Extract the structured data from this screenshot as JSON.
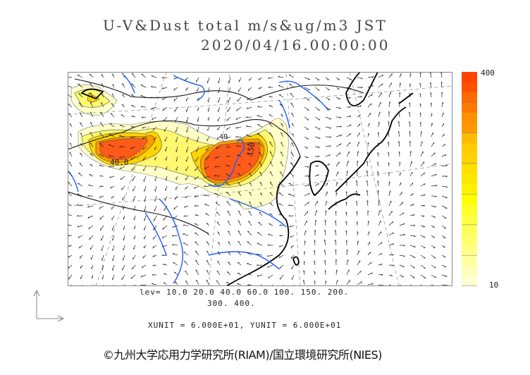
{
  "title": {
    "line1": "U-V&Dust total m/s&ug/m3 JST",
    "line2": "2020/04/16.00:00:00"
  },
  "colorbar": {
    "max_label": "400",
    "min_label": "10",
    "colors": [
      "#ff4400",
      "#ff5000",
      "#ff6a00",
      "#ff7800",
      "#ff9000",
      "#ff9900",
      "#ffbb00",
      "#ffcc00",
      "#ffd200",
      "#ffe000",
      "#ffe600",
      "#fff200",
      "#ffff00",
      "#ffff2a",
      "#ffff44",
      "#ffff5a",
      "#ffff70",
      "#ffff88",
      "#ffffa0",
      "#ffffbb",
      "#ffffd0"
    ]
  },
  "map": {
    "contour_labels": [
      "40.0",
      "150",
      "40"
    ],
    "colors": {
      "coast": "#000000",
      "river": "#1a5cff",
      "grid": "#888888",
      "border": "#222222"
    }
  },
  "legend": {
    "levels_line1": "lev= 10.0 20.0 40.0 60.0 100. 150. 200.",
    "levels_line2": "300. 400.",
    "units": "XUNIT = 6.000E+01, YUNIT = 6.000E+01"
  },
  "copyright": "©九州大学応用力学研究所(RIAM)/国立環境研究所(NIES)"
}
